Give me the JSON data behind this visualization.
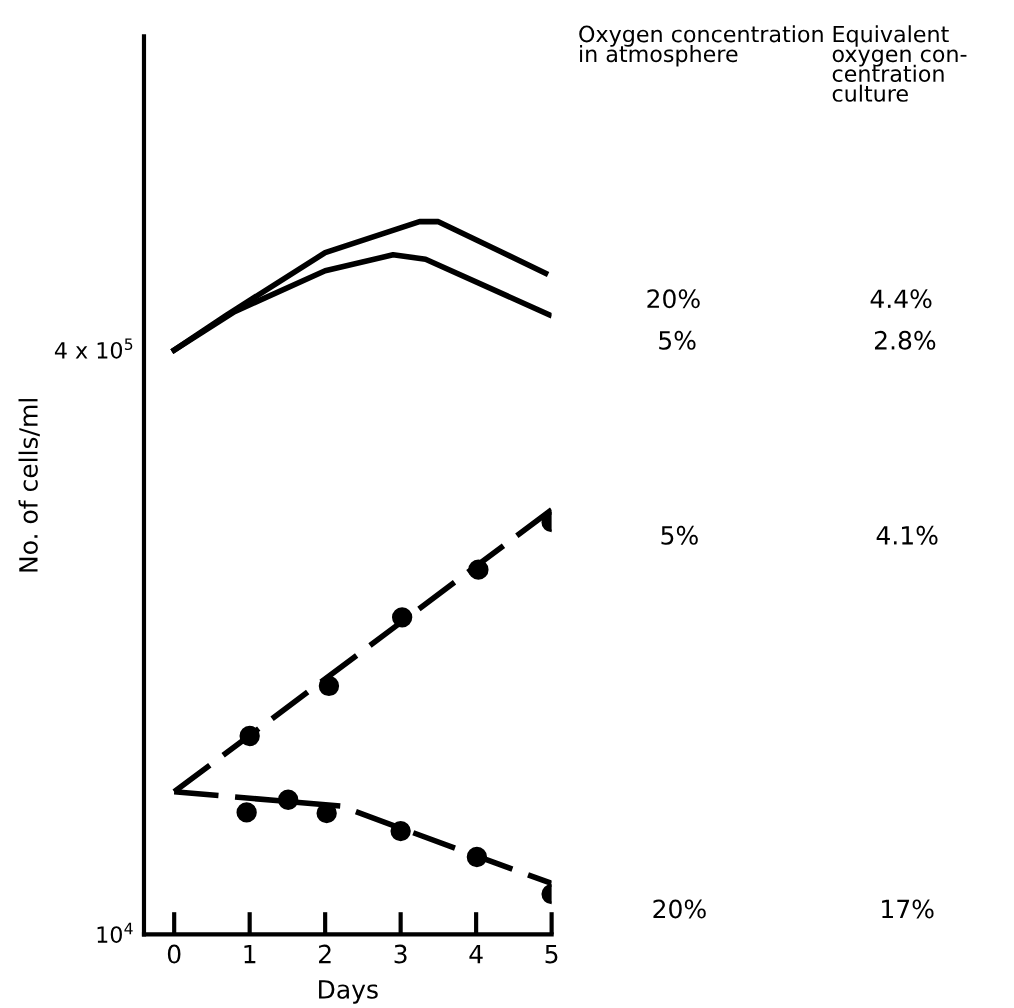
{
  "chart_data": {
    "type": "line",
    "xlabel": "Days",
    "ylabel": "No. of cells/ml",
    "log": "y",
    "xlim": [
      -0.4,
      5
    ],
    "xticks": [
      0,
      1,
      2,
      3,
      4,
      5
    ],
    "ylim": [
      10000,
      2900000
    ],
    "yticks": [
      {
        "value": 10000,
        "label": "10$^{4}$"
      },
      {
        "value": 400000,
        "label": "4 x 10$^{5}$"
      }
    ],
    "grid": false,
    "tick_labels": "xy",
    "legend_title": "Oxygen concentration\nin atmosphere",
    "series": [
      {
        "name": "20%",
        "color": "#000000",
        "marker": "none",
        "line_style": "solid",
        "x": [
          0,
          0.7,
          2.0,
          3.25,
          3.5,
          4.92
        ],
        "values": [
          400000,
          500000,
          740000,
          900000,
          900000,
          650000
        ]
      },
      {
        "name": "5%",
        "color": "#000000",
        "marker": "none",
        "line_style": "solid",
        "x": [
          0,
          0.8,
          2.0,
          2.9,
          3.33,
          4.97
        ],
        "values": [
          400000,
          510000,
          660000,
          730000,
          710000,
          500000
        ]
      },
      {
        "name": "5%",
        "color": "#000000",
        "marker": "none",
        "line_style": "dashed",
        "x": [
          0,
          5
        ],
        "values": [
          24600,
          146000
        ]
      },
      {
        "color": "#000000",
        "type": "scatter",
        "marker": "circle",
        "x": [
          1.0,
          2.05,
          3.02,
          4.03,
          5.0
        ],
        "values": [
          35000,
          48000,
          74000,
          100000,
          135000
        ]
      },
      {
        "name": "20%",
        "color": "#000000",
        "marker": "none",
        "line_style": "dashed",
        "x": [
          0,
          2.2,
          3.87,
          5.0
        ],
        "values": [
          24600,
          22500,
          16800,
          13800
        ]
      },
      {
        "color": "#000000",
        "type": "scatter",
        "marker": "circle",
        "x": [
          0.96,
          1.51,
          2.02,
          3.0,
          4.01,
          5.0
        ],
        "values": [
          21600,
          23400,
          21500,
          19200,
          16300,
          12900
        ]
      }
    ],
    "annotations": [
      "Equivalent\noxygen con-\ncentration\nculture",
      "4.4%",
      "2.8%",
      "4.1%",
      "17%"
    ]
  }
}
